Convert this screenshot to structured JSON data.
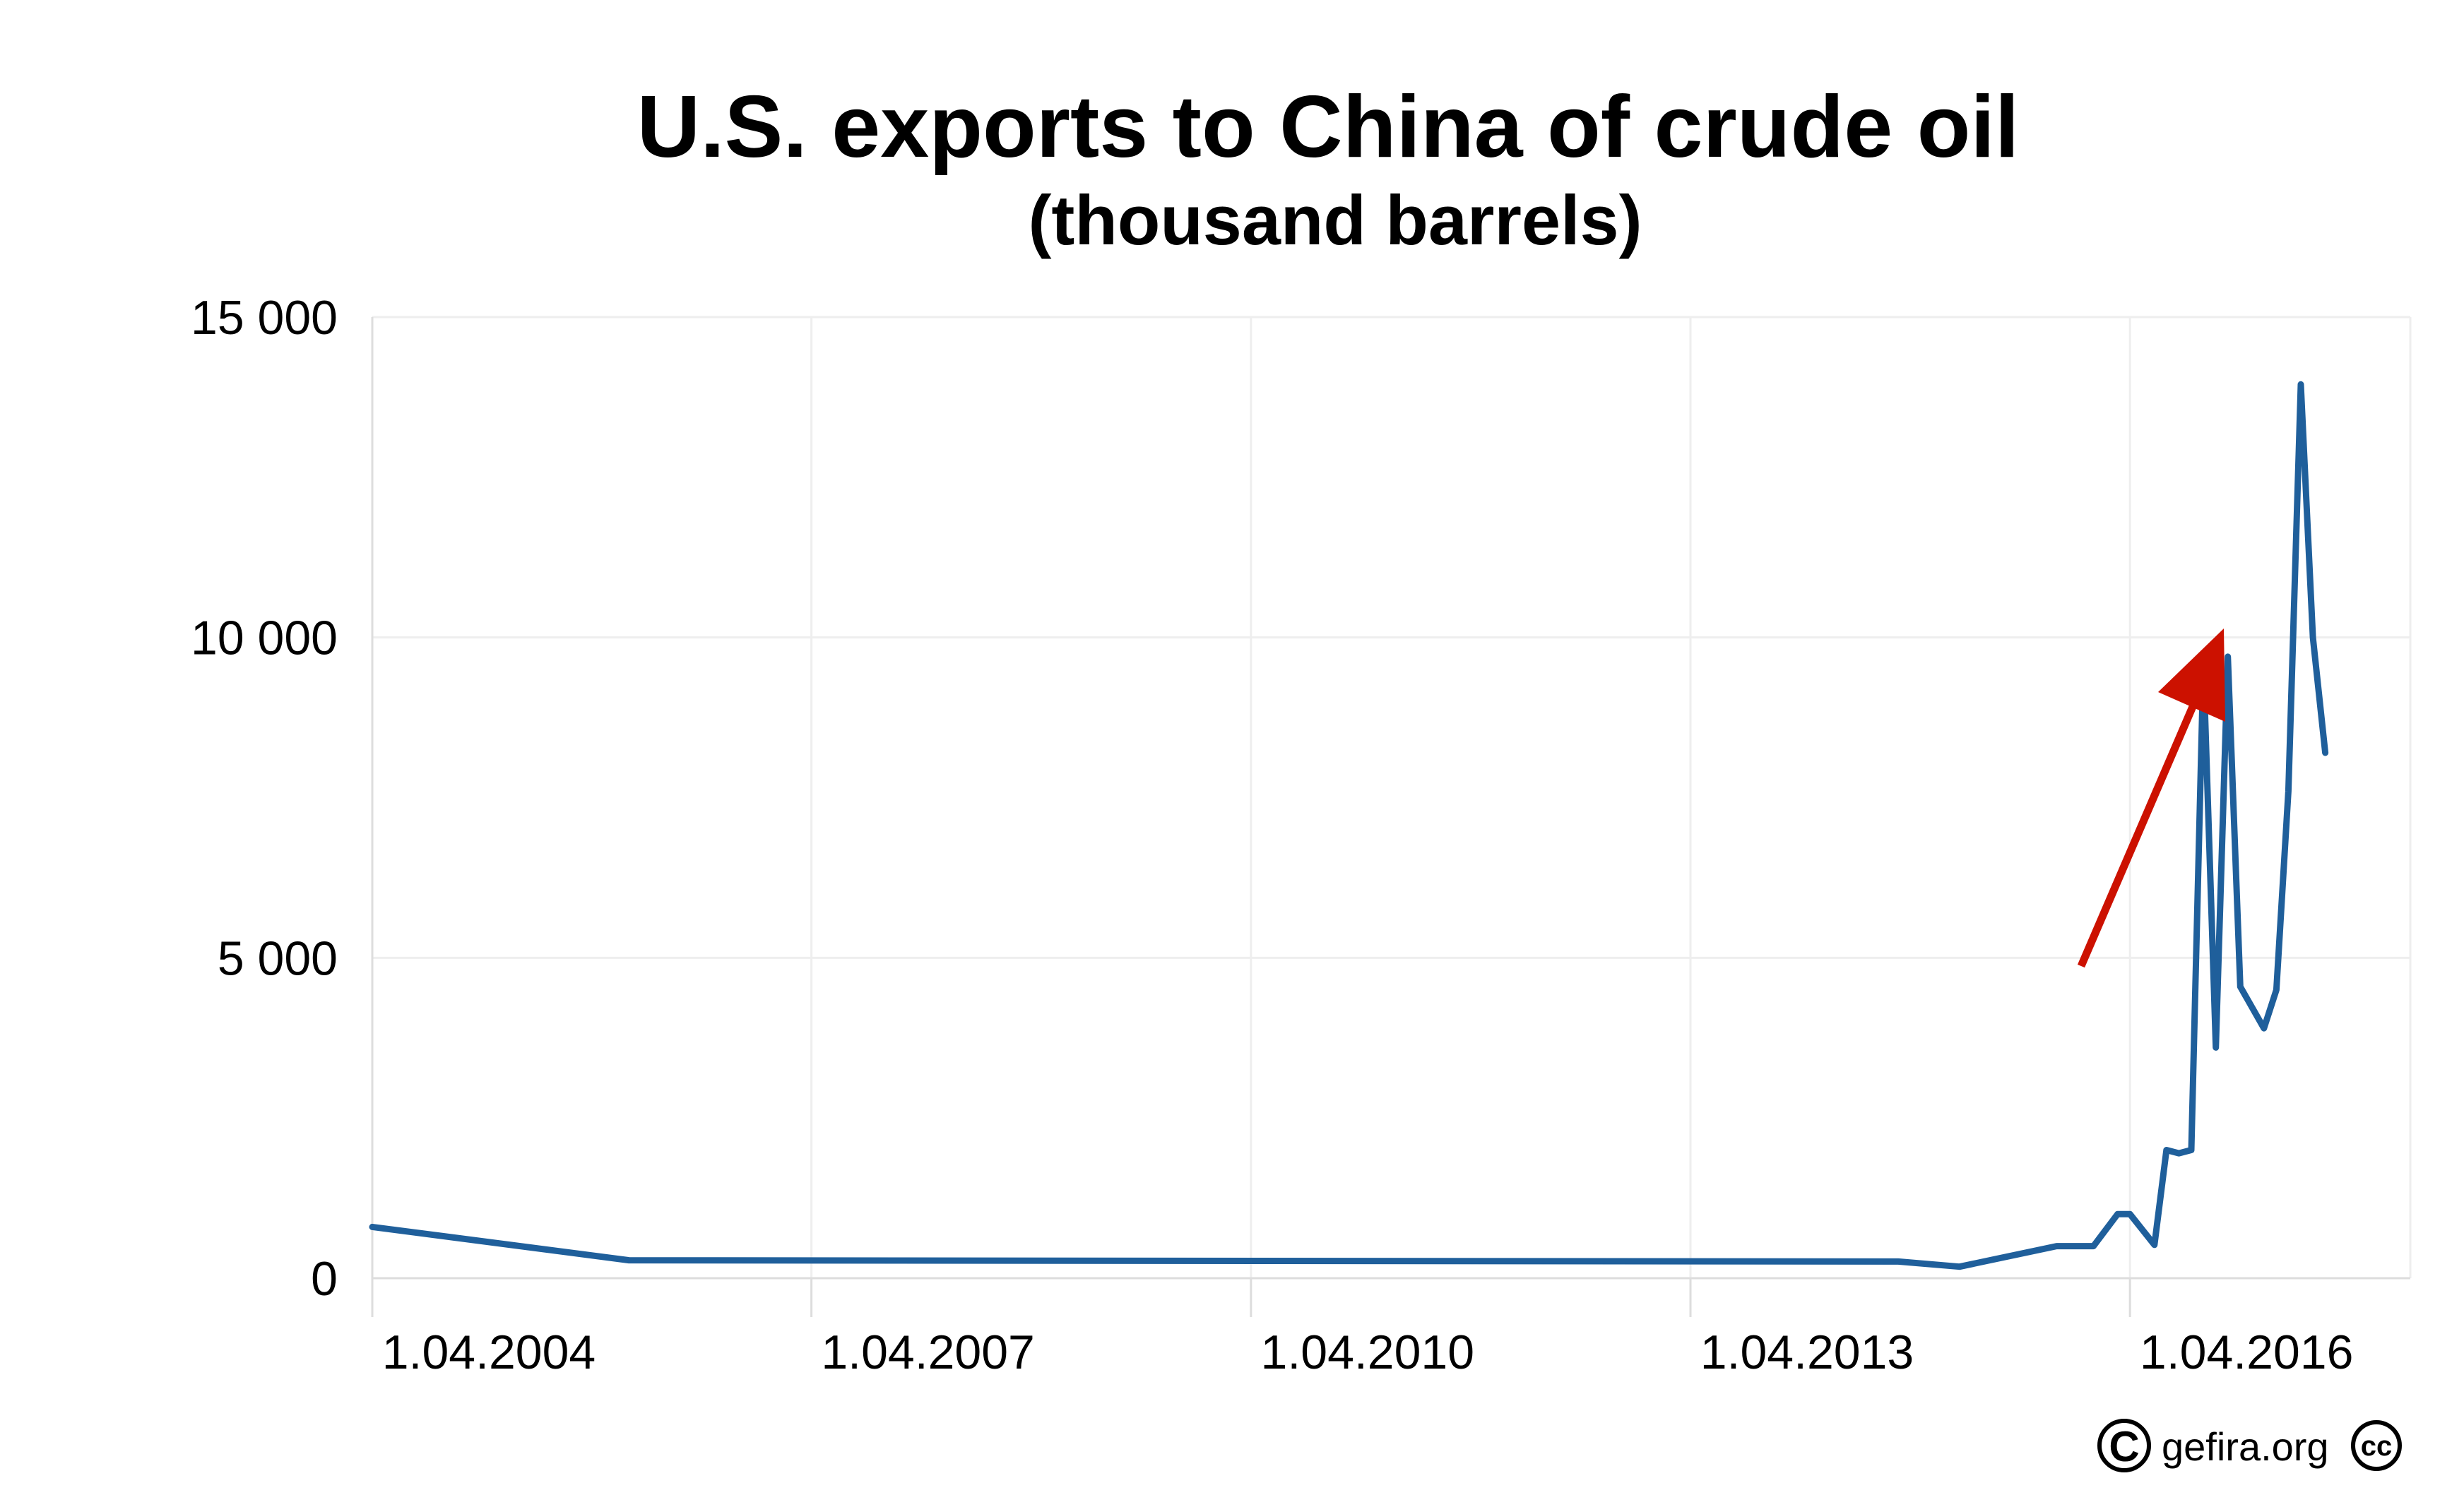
{
  "chart_data": {
    "type": "line",
    "title": "U.S. exports to China of crude oil",
    "subtitle": "(thousand barrels)",
    "xlabel": "",
    "ylabel": "",
    "ylim": [
      0,
      15000
    ],
    "yticks": [
      0,
      5000,
      10000,
      15000
    ],
    "ytick_labels": [
      "0",
      "5 000",
      "10 000",
      "15 000"
    ],
    "xticks": [
      "2004-04-01",
      "2007-04-01",
      "2010-04-01",
      "2013-04-01",
      "2016-04-01"
    ],
    "xtick_labels": [
      "1.04.2004",
      "1.04.2007",
      "1.04.2010",
      "1.04.2013",
      "1.04.2016"
    ],
    "xlim": [
      "2004-04-01",
      "2018-03-01"
    ],
    "grid": true,
    "series": [
      {
        "color": "#1f5f9b",
        "points": [
          {
            "x": "2004-04-01",
            "y": 800
          },
          {
            "x": "2006-01-01",
            "y": 280
          },
          {
            "x": "2014-09-01",
            "y": 260
          },
          {
            "x": "2015-02-01",
            "y": 180
          },
          {
            "x": "2015-10-01",
            "y": 500
          },
          {
            "x": "2016-01-01",
            "y": 500
          },
          {
            "x": "2016-03-01",
            "y": 1000
          },
          {
            "x": "2016-04-01",
            "y": 1000
          },
          {
            "x": "2016-06-01",
            "y": 520
          },
          {
            "x": "2016-07-01",
            "y": 2000
          },
          {
            "x": "2016-08-01",
            "y": 1950
          },
          {
            "x": "2016-09-01",
            "y": 2000
          },
          {
            "x": "2016-10-01",
            "y": 9600
          },
          {
            "x": "2016-11-01",
            "y": 3600
          },
          {
            "x": "2016-12-01",
            "y": 9700
          },
          {
            "x": "2017-01-01",
            "y": 4550
          },
          {
            "x": "2017-03-01",
            "y": 3900
          },
          {
            "x": "2017-04-01",
            "y": 4500
          },
          {
            "x": "2017-05-01",
            "y": 7600
          },
          {
            "x": "2017-06-01",
            "y": 13950
          },
          {
            "x": "2017-07-01",
            "y": 10000
          },
          {
            "x": "2017-08-01",
            "y": 8200
          }
        ]
      }
    ],
    "annotations": [
      {
        "type": "arrow",
        "color": "#cc1100",
        "direction": "up-right"
      }
    ]
  },
  "footer": {
    "copyright_symbol": "C",
    "credit": "gefira.org",
    "license_symbol": "cc"
  }
}
